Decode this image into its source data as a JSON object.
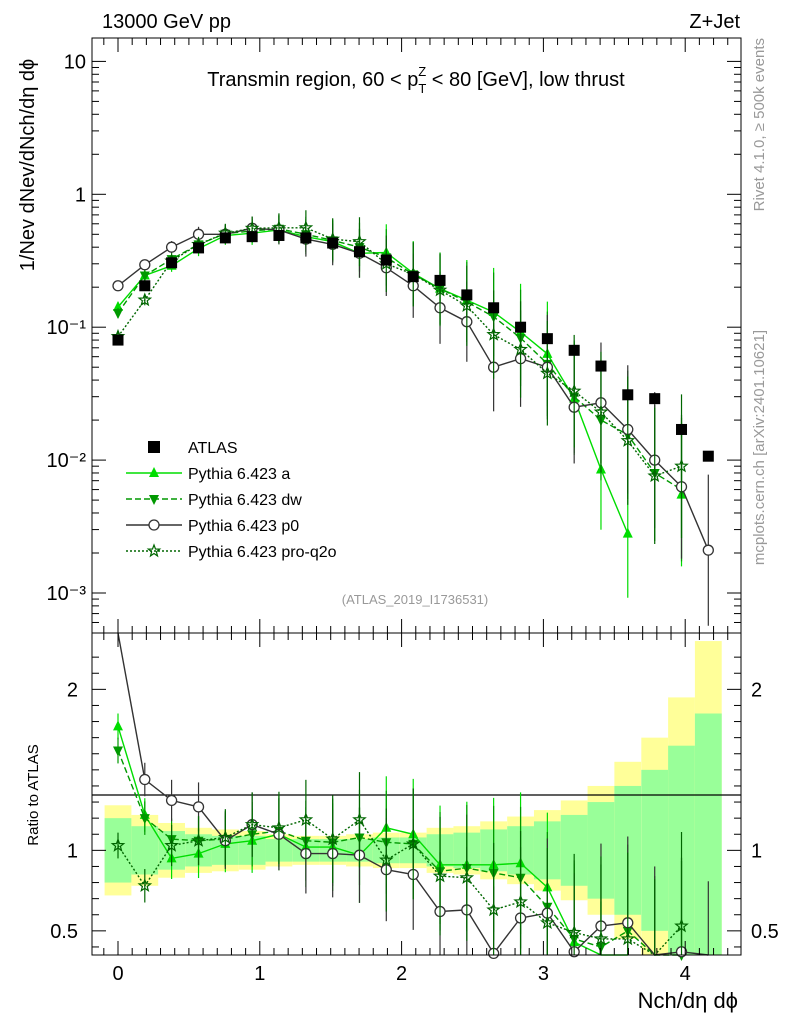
{
  "header": {
    "left": "13000 GeV pp",
    "right": "Z+Jet"
  },
  "side_text": {
    "top": "Rivet 4.1.0, ≥ 500k events",
    "bottom": "mcplots.cern.ch [arXiv:2401.10621]"
  },
  "chart_data": {
    "type": "line",
    "title": "Transmin region, 60 < pT^Z < 80 [GeV], low thrust",
    "title_parts": {
      "pre": "Transmin region, 60 < p",
      "sub": "T",
      "sup": "Z",
      "post": " < 80 [GeV], low thrust"
    },
    "analysis_label": "(ATLAS_2019_I1736531)",
    "xlabel": "Nch/dη dϕ",
    "ylabel": "1/Nev dNev/dNch/dη dϕ",
    "ratio_ylabel": "Ratio to ATLAS",
    "xlim": [
      -0.1,
      4.35
    ],
    "ylim": [
      0.0005,
      15
    ],
    "yscale": "log",
    "ratio_ylim": [
      0.35,
      2.35
    ],
    "x_ticks": [
      "0",
      "1",
      "2",
      "3",
      "4"
    ],
    "y_ticks": [
      "10⁻³",
      "10⁻²",
      "10⁻¹",
      "1",
      "10"
    ],
    "ratio_ticks": [
      "0.5",
      "1",
      "2"
    ],
    "x": [
      0.0,
      0.189,
      0.378,
      0.568,
      0.757,
      0.946,
      1.135,
      1.325,
      1.514,
      1.703,
      1.892,
      2.082,
      2.271,
      2.46,
      2.649,
      2.839,
      3.028,
      3.217,
      3.406,
      3.595,
      3.785,
      3.974,
      4.163
    ],
    "data": {
      "name": "ATLAS",
      "values": [
        0.08,
        0.205,
        0.305,
        0.395,
        0.47,
        0.48,
        0.49,
        0.47,
        0.43,
        0.37,
        0.32,
        0.24,
        0.225,
        0.175,
        0.14,
        0.1,
        0.082,
        0.067,
        0.051,
        0.031,
        0.029,
        0.017,
        0.0107
      ]
    },
    "series": [
      {
        "name": "Pythia 6.423 a",
        "color": "#00dd00",
        "values": [
          0.142,
          0.245,
          0.29,
          0.39,
          0.49,
          0.51,
          0.54,
          0.48,
          0.44,
          0.36,
          0.365,
          0.255,
          0.195,
          0.16,
          0.13,
          0.092,
          0.063,
          0.029,
          0.0085,
          0.0028,
          null,
          0.0055,
          null
        ]
      },
      {
        "name": "Pythia 6.423 dw",
        "color": "#009900",
        "values": [
          0.128,
          0.245,
          0.325,
          0.42,
          0.505,
          0.53,
          0.55,
          0.5,
          0.45,
          0.4,
          0.335,
          0.25,
          0.195,
          0.155,
          0.12,
          0.083,
          0.053,
          0.03,
          0.02,
          0.0155,
          0.008,
          0.006,
          null
        ]
      },
      {
        "name": "Pythia 6.423 p0",
        "color": "#333333",
        "values": [
          0.205,
          0.295,
          0.4,
          0.5,
          0.5,
          0.555,
          0.54,
          0.46,
          0.42,
          0.36,
          0.28,
          0.205,
          0.14,
          0.11,
          0.05,
          0.058,
          0.05,
          0.025,
          0.027,
          0.017,
          0.01,
          0.0063,
          0.0021
        ]
      },
      {
        "name": "Pythia 6.423 pro-q2o",
        "color": "#006600",
        "values": [
          0.085,
          0.16,
          0.315,
          0.42,
          0.51,
          0.555,
          0.56,
          0.56,
          0.46,
          0.44,
          0.3,
          0.25,
          0.19,
          0.145,
          0.088,
          0.068,
          0.045,
          0.033,
          0.023,
          0.014,
          0.0076,
          0.009,
          null
        ]
      }
    ],
    "ratio": {
      "band_total_half_width": [
        0.28,
        0.22,
        0.17,
        0.14,
        0.13,
        0.12,
        0.1,
        0.09,
        0.09,
        0.1,
        0.11,
        0.11,
        0.14,
        0.15,
        0.18,
        0.21,
        0.25,
        0.31,
        0.4,
        0.55,
        0.7,
        0.95,
        1.3
      ],
      "band_stat_half_width": [
        0.2,
        0.15,
        0.12,
        0.1,
        0.09,
        0.09,
        0.07,
        0.07,
        0.07,
        0.07,
        0.08,
        0.08,
        0.1,
        0.11,
        0.13,
        0.15,
        0.18,
        0.22,
        0.3,
        0.4,
        0.5,
        0.65,
        0.85
      ],
      "series": [
        {
          "name": "Pythia 6.423 a",
          "values": [
            1.77,
            1.22,
            0.95,
            0.98,
            1.04,
            1.06,
            1.1,
            1.02,
            1.02,
            0.97,
            1.14,
            1.1,
            0.91,
            0.91,
            0.91,
            0.92,
            0.77,
            0.43,
            0.17,
            0.09,
            null,
            null,
            null
          ]
        },
        {
          "name": "Pythia 6.423 dw",
          "values": [
            1.62,
            1.2,
            1.07,
            1.06,
            1.07,
            1.1,
            1.12,
            1.06,
            1.05,
            1.08,
            1.05,
            1.04,
            0.87,
            0.89,
            0.86,
            0.83,
            0.65,
            0.45,
            0.4,
            0.5,
            0.28,
            0.35,
            null
          ]
        },
        {
          "name": "Pythia 6.423 p0",
          "values": [
            2.55,
            1.44,
            1.31,
            1.27,
            1.06,
            1.16,
            1.1,
            0.98,
            0.98,
            0.97,
            0.88,
            0.85,
            0.62,
            0.63,
            0.36,
            0.58,
            0.61,
            0.37,
            0.53,
            0.55,
            0.34,
            0.37,
            0.2
          ]
        },
        {
          "name": "Pythia 6.423 pro-q2o",
          "values": [
            1.03,
            0.78,
            1.03,
            1.06,
            1.08,
            1.16,
            1.14,
            1.19,
            1.07,
            1.19,
            0.94,
            1.04,
            0.84,
            0.83,
            0.63,
            0.68,
            0.55,
            0.49,
            0.45,
            0.45,
            0.26,
            0.53,
            null
          ]
        }
      ]
    }
  }
}
